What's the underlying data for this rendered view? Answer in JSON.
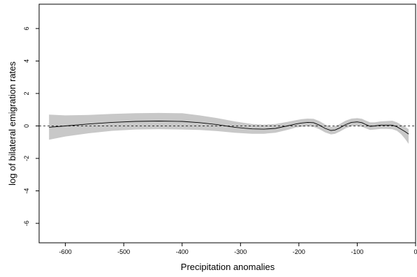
{
  "chart_data": {
    "type": "line",
    "title": "",
    "xlabel": "Precipitation anomalies",
    "ylabel": "log of bilateral emigration rates",
    "xlim": [
      -645,
      0
    ],
    "ylim": [
      -7.2,
      7.5
    ],
    "x_ticks": [
      -600,
      -500,
      -400,
      -300,
      -200,
      -100,
      0
    ],
    "x_tick_labels": [
      "-600",
      "-500",
      "-400",
      "-300",
      "-200",
      "-100",
      "0"
    ],
    "y_ticks": [
      -6,
      -4,
      -2,
      0,
      2,
      4,
      6
    ],
    "y_tick_labels": [
      "-6",
      "-4",
      "-2",
      "0",
      "2",
      "4",
      "6"
    ],
    "grid": false,
    "legend": "none",
    "reference_lines": [
      {
        "axis": "y",
        "value": 0,
        "style": "dashed"
      },
      {
        "axis": "x",
        "value": 0,
        "style": "dashed"
      }
    ],
    "colors": {
      "line": "#000000",
      "band": "#c8c8c8",
      "axis": "#000000"
    },
    "series": [
      {
        "x": [
          -628,
          -600,
          -560,
          -520,
          -480,
          -440,
          -400,
          -370,
          -340,
          -310,
          -280,
          -260,
          -240,
          -220,
          -205,
          -195,
          -185,
          -175,
          -165,
          -155,
          -145,
          -138,
          -130,
          -120,
          -110,
          -100,
          -92,
          -85,
          -78,
          -70,
          -60,
          -50,
          -40,
          -32,
          -25,
          -18,
          -12
        ],
        "y": [
          -0.08,
          0.0,
          0.12,
          0.22,
          0.28,
          0.3,
          0.28,
          0.2,
          0.08,
          -0.08,
          -0.18,
          -0.2,
          -0.15,
          0.0,
          0.12,
          0.18,
          0.22,
          0.2,
          0.05,
          -0.15,
          -0.28,
          -0.25,
          -0.12,
          0.08,
          0.22,
          0.25,
          0.2,
          0.08,
          -0.02,
          0.0,
          0.05,
          0.05,
          0.05,
          -0.05,
          -0.2,
          -0.35,
          -0.5
        ],
        "lower": [
          -0.85,
          -0.65,
          -0.45,
          -0.3,
          -0.22,
          -0.2,
          -0.22,
          -0.25,
          -0.32,
          -0.42,
          -0.48,
          -0.48,
          -0.42,
          -0.25,
          -0.1,
          -0.05,
          -0.02,
          -0.05,
          -0.2,
          -0.4,
          -0.52,
          -0.48,
          -0.35,
          -0.15,
          -0.02,
          0.0,
          -0.05,
          -0.15,
          -0.25,
          -0.22,
          -0.18,
          -0.18,
          -0.2,
          -0.3,
          -0.5,
          -0.8,
          -1.1
        ],
        "upper": [
          0.7,
          0.65,
          0.68,
          0.74,
          0.78,
          0.8,
          0.78,
          0.65,
          0.48,
          0.28,
          0.12,
          0.08,
          0.12,
          0.25,
          0.35,
          0.42,
          0.45,
          0.44,
          0.3,
          0.1,
          -0.05,
          -0.02,
          0.12,
          0.32,
          0.45,
          0.48,
          0.44,
          0.32,
          0.22,
          0.22,
          0.28,
          0.3,
          0.32,
          0.22,
          0.08,
          -0.05,
          -0.2
        ]
      }
    ]
  }
}
